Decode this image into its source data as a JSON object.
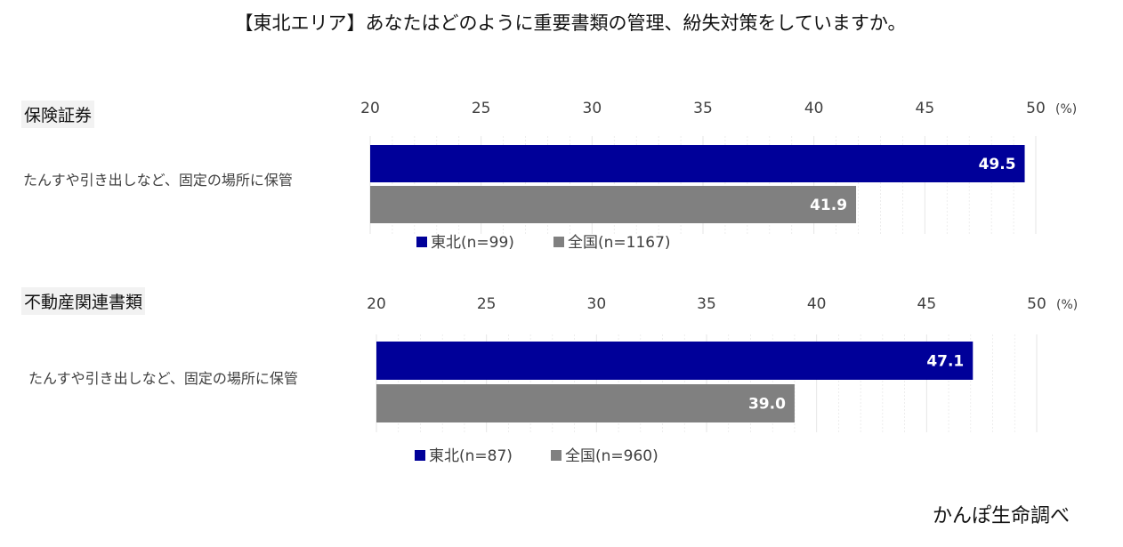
{
  "title": "【東北エリア】あなたはどのように重要書類の管理、紛失対策をしていますか。",
  "source": "かんぽ生命調べ",
  "colors": {
    "tohoku": "#000099",
    "national": "#808080",
    "grid": "#e6e6e6"
  },
  "chart_data": [
    {
      "type": "bar",
      "orientation": "horizontal",
      "panel_title": "保険証券",
      "categories": [
        "たんすや引き出しなど、固定の場所に保管"
      ],
      "series": [
        {
          "name": "東北(n=99)",
          "values": [
            49.5
          ]
        },
        {
          "name": "全国(n=1167)",
          "values": [
            41.9
          ]
        }
      ],
      "xlim": [
        20,
        50
      ],
      "ticks": [
        "20",
        "25",
        "30",
        "35",
        "40",
        "45",
        "50"
      ],
      "unit": "(%)",
      "grid": true,
      "legend": "bottom"
    },
    {
      "type": "bar",
      "orientation": "horizontal",
      "panel_title": "不動産関連書類",
      "categories": [
        "たんすや引き出しなど、固定の場所に保管"
      ],
      "series": [
        {
          "name": "東北(n=87)",
          "values": [
            47.1
          ]
        },
        {
          "name": "全国(n=960)",
          "values": [
            39.0
          ]
        }
      ],
      "xlim": [
        20,
        50
      ],
      "ticks": [
        "20",
        "25",
        "30",
        "35",
        "40",
        "45",
        "50"
      ],
      "unit": "(%)",
      "grid": true,
      "legend": "bottom"
    }
  ]
}
